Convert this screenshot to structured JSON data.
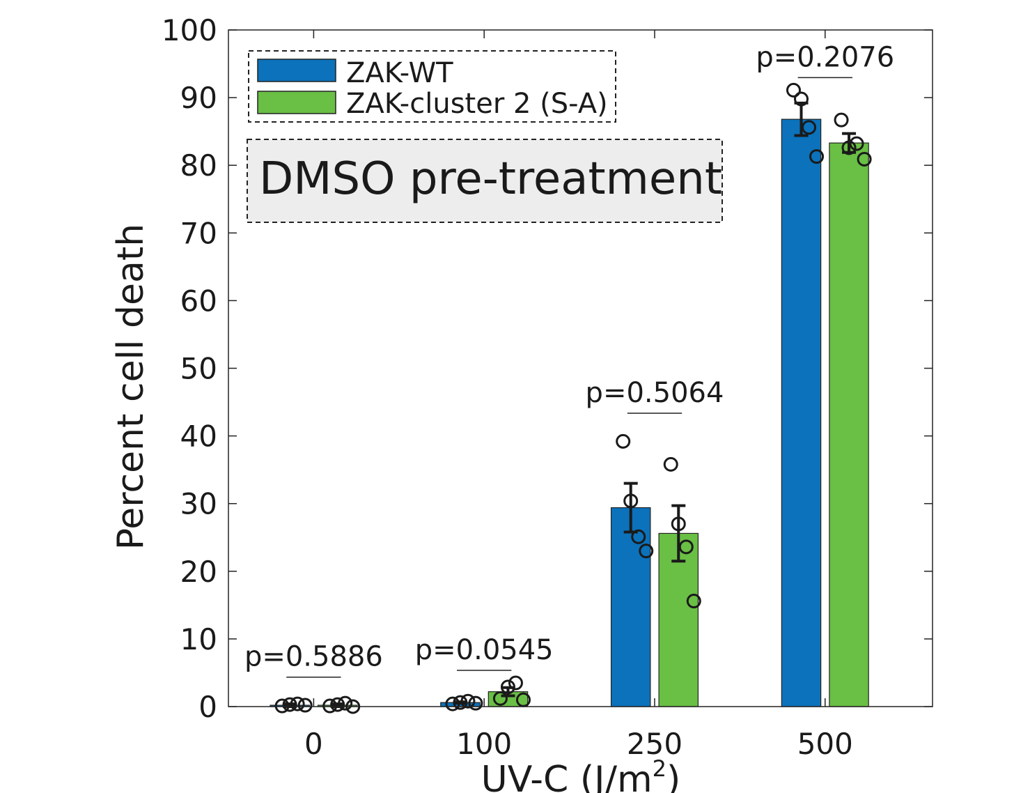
{
  "chart_data": {
    "type": "bar",
    "title": "",
    "xlabel": "UV-C (J/m",
    "xlabel_superscript": "2",
    "xlabel_suffix": ")",
    "ylabel": "Percent cell death",
    "ylim": [
      0,
      100
    ],
    "yticks": [
      0,
      10,
      20,
      30,
      40,
      50,
      60,
      70,
      80,
      90,
      100
    ],
    "categories": [
      "0",
      "100",
      "250",
      "500"
    ],
    "series": [
      {
        "name": "ZAK-WT",
        "color": "#0b72bb",
        "values": [
          0.2,
          0.6,
          29.4,
          86.8
        ],
        "errors": [
          0.2,
          0.1,
          3.6,
          2.4
        ],
        "points": [
          [
            0.1,
            0.3,
            0.4,
            0.2
          ],
          [
            0.4,
            0.6,
            0.8,
            0.5
          ],
          [
            39.2,
            30.4,
            25.1,
            23.0
          ],
          [
            91.1,
            89.8,
            85.6,
            81.3
          ]
        ]
      },
      {
        "name": "ZAK-cluster 2 (S-A)",
        "color": "#6abf45",
        "values": [
          0.2,
          2.2,
          25.6,
          83.3
        ],
        "errors": [
          0.2,
          0.6,
          4.1,
          1.4
        ],
        "points": [
          [
            0.1,
            0.3,
            0.5,
            0.0
          ],
          [
            1.2,
            2.9,
            3.5,
            1.0
          ],
          [
            35.8,
            27.0,
            23.6,
            15.6
          ],
          [
            86.7,
            82.6,
            83.2,
            80.9
          ]
        ]
      }
    ],
    "pvalues": [
      "p=0.5886",
      "p=0.0545",
      "p=0.5064",
      "p=0.2076"
    ],
    "pvalue_heights": [
      6.0,
      7.0,
      45.0,
      94.6
    ],
    "bar_width": 0.23,
    "group_offset": 0.14,
    "legend": {
      "position": "top-left",
      "border": "dashed"
    },
    "annotation": {
      "text": "DMSO pre-treatment",
      "background": "#ededed",
      "border": "dashed"
    }
  }
}
